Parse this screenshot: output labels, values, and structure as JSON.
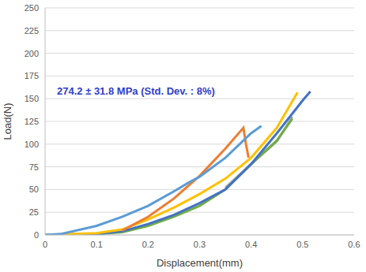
{
  "chart_data": {
    "type": "line",
    "annotation": "274.2 ± 31.8 MPa (Std. Dev. : 8%)",
    "x_label": "Displacement(mm)",
    "y_label": "Load(N)",
    "xlim": [
      0,
      0.6
    ],
    "xticks": [
      0,
      0.1,
      0.2,
      0.3,
      0.4,
      0.5,
      0.6
    ],
    "ylim": [
      0,
      250
    ],
    "yticks": [
      0,
      25,
      50,
      75,
      100,
      125,
      150,
      175,
      200,
      225,
      250
    ],
    "grid": "y",
    "series": [
      {
        "color": "#a5a5a5",
        "x": [
          0.35,
          0.4,
          0.45,
          0.48
        ],
        "values": [
          52,
          78,
          103,
          130
        ]
      },
      {
        "color": "#70ad47",
        "x": [
          0,
          0.1,
          0.15,
          0.2,
          0.25,
          0.3,
          0.35,
          0.4,
          0.45,
          0.48
        ],
        "values": [
          0,
          1,
          3,
          10,
          20,
          32,
          50,
          78,
          104,
          128
        ]
      },
      {
        "color": "#4472c4",
        "x": [
          0,
          0.1,
          0.15,
          0.2,
          0.25,
          0.3,
          0.35,
          0.4,
          0.45,
          0.5,
          0.515
        ],
        "values": [
          0,
          1,
          4,
          12,
          22,
          35,
          50,
          78,
          112,
          148,
          158
        ]
      },
      {
        "color": "#ffc000",
        "x": [
          0,
          0.1,
          0.15,
          0.2,
          0.25,
          0.3,
          0.35,
          0.4,
          0.45,
          0.49
        ],
        "values": [
          0,
          2,
          6,
          17,
          30,
          45,
          62,
          85,
          118,
          157
        ]
      },
      {
        "color": "#ed7d31",
        "x": [
          0.15,
          0.2,
          0.25,
          0.3,
          0.35,
          0.385,
          0.39,
          0.395
        ],
        "values": [
          5,
          20,
          40,
          65,
          95,
          118,
          100,
          85
        ]
      },
      {
        "color": "#5b9bd5",
        "x": [
          0,
          0.03,
          0.1,
          0.15,
          0.2,
          0.25,
          0.28,
          0.3,
          0.35,
          0.4,
          0.42
        ],
        "values": [
          0,
          1,
          10,
          20,
          32,
          48,
          58,
          64,
          85,
          112,
          120
        ]
      }
    ]
  }
}
